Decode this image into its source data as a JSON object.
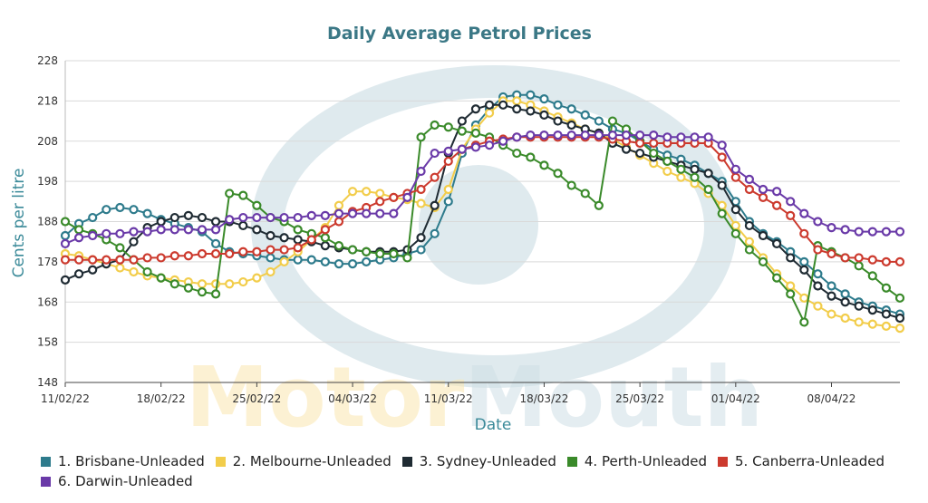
{
  "chart_data": {
    "type": "line",
    "title": "Daily Average Petrol Prices",
    "xlabel": "Date",
    "ylabel": "Cents per litre",
    "ylim": [
      148,
      228
    ],
    "yticks": [
      148,
      158,
      168,
      178,
      188,
      198,
      208,
      218,
      228
    ],
    "x": [
      "11/02/22",
      "12/02/22",
      "13/02/22",
      "14/02/22",
      "15/02/22",
      "16/02/22",
      "17/02/22",
      "18/02/22",
      "19/02/22",
      "20/02/22",
      "21/02/22",
      "22/02/22",
      "23/02/22",
      "24/02/22",
      "25/02/22",
      "26/02/22",
      "27/02/22",
      "28/02/22",
      "01/03/22",
      "02/03/22",
      "03/03/22",
      "04/03/22",
      "05/03/22",
      "06/03/22",
      "07/03/22",
      "08/03/22",
      "09/03/22",
      "10/03/22",
      "11/03/22",
      "12/03/22",
      "13/03/22",
      "14/03/22",
      "15/03/22",
      "16/03/22",
      "17/03/22",
      "18/03/22",
      "19/03/22",
      "20/03/22",
      "21/03/22",
      "22/03/22",
      "23/03/22",
      "24/03/22",
      "25/03/22",
      "26/03/22",
      "27/03/22",
      "28/03/22",
      "29/03/22",
      "30/03/22",
      "31/03/22",
      "01/04/22",
      "02/04/22",
      "03/04/22",
      "04/04/22",
      "05/04/22",
      "06/04/22",
      "07/04/22",
      "08/04/22",
      "09/04/22",
      "10/04/22",
      "11/04/22",
      "12/04/22",
      "13/04/22"
    ],
    "xticks": [
      "11/02/22",
      "18/02/22",
      "25/02/22",
      "04/03/22",
      "11/03/22",
      "18/03/22",
      "25/03/22",
      "01/04/22",
      "08/04/22"
    ],
    "series": [
      {
        "name": "1. Brisbane-Unleaded",
        "color": "#2e7b8c",
        "values": [
          184.5,
          187.5,
          189,
          191,
          191.5,
          191,
          190,
          188.5,
          187.5,
          186.5,
          185.5,
          182.5,
          180.5,
          180,
          179.5,
          179,
          178.5,
          178.5,
          178.5,
          178,
          177.5,
          177.5,
          178,
          178.5,
          179,
          180,
          181,
          185,
          193,
          205,
          212,
          216,
          219,
          219.5,
          219.5,
          218.5,
          217,
          216,
          214.5,
          213,
          211,
          210,
          208,
          206,
          204.5,
          203.5,
          202,
          200,
          198,
          193,
          188,
          185,
          183,
          180.5,
          178,
          175,
          172,
          170,
          168,
          167,
          166,
          165
        ]
      },
      {
        "name": "2. Melbourne-Unleaded",
        "color": "#f2cd4b",
        "values": [
          180,
          179.5,
          178.5,
          177.5,
          176.5,
          175.5,
          174.5,
          174,
          173.5,
          173,
          172.5,
          172.5,
          172.5,
          173,
          174,
          175.5,
          178,
          180.5,
          183.5,
          186.5,
          192,
          195.5,
          195.5,
          195,
          194,
          193.5,
          192.5,
          191.5,
          196,
          206,
          211,
          215,
          218,
          218,
          217,
          215.5,
          214,
          212.5,
          211,
          210,
          208.5,
          206.5,
          204.5,
          202.5,
          200.5,
          199,
          197.5,
          195,
          192,
          187,
          183,
          179,
          175,
          172,
          169,
          167,
          165,
          164,
          163,
          162.5,
          162,
          161.5
        ]
      },
      {
        "name": "3. Sydney-Unleaded",
        "color": "#1f2b33",
        "values": [
          173.5,
          175,
          176,
          177.5,
          178.5,
          183,
          186.5,
          188,
          189,
          189.5,
          189,
          188,
          188,
          187,
          186,
          184.5,
          184,
          183.5,
          183,
          182,
          181.5,
          181,
          180.5,
          180.5,
          180.5,
          181,
          184,
          192,
          205,
          213,
          216,
          217,
          217,
          216,
          215.5,
          214.5,
          213,
          212,
          211,
          210,
          207.5,
          206,
          205,
          204,
          203,
          202,
          201,
          200,
          197,
          191,
          187,
          184.5,
          182.5,
          179,
          176,
          172,
          169.5,
          168,
          167,
          166,
          165,
          164
        ]
      },
      {
        "name": "4. Perth-Unleaded",
        "color": "#3a8a2a",
        "values": [
          188,
          186,
          185,
          183.5,
          181.5,
          178.5,
          175.5,
          174,
          172.5,
          171.5,
          170.5,
          170,
          195,
          194.5,
          192,
          189,
          188,
          186,
          185,
          184,
          182,
          181,
          180.5,
          180,
          180,
          179,
          209,
          212,
          211.5,
          210.5,
          210,
          209,
          207,
          205,
          204,
          202,
          200,
          197,
          195,
          192,
          213,
          211,
          208,
          205,
          203,
          201,
          199,
          196,
          190,
          185,
          181,
          178,
          174,
          170,
          163,
          182,
          180.5,
          179,
          177,
          174.5,
          171.5,
          169
        ]
      },
      {
        "name": "5. Canberra-Unleaded",
        "color": "#cc3a2e",
        "values": [
          178.5,
          178.5,
          178.5,
          178.5,
          178.5,
          178.5,
          179,
          179,
          179.5,
          179.5,
          180,
          180,
          180,
          180.5,
          180.5,
          181,
          181,
          181.5,
          183.5,
          186,
          188,
          190.5,
          191.5,
          193,
          194,
          195,
          196,
          199,
          203,
          206,
          207,
          208,
          208.5,
          209,
          209,
          209,
          209,
          209,
          209,
          209,
          208.5,
          208,
          207.5,
          207.5,
          207.5,
          207.5,
          207.5,
          207.5,
          204,
          199,
          196,
          194,
          192,
          189.5,
          185,
          181,
          180,
          179,
          179,
          178.5,
          178,
          178
        ]
      },
      {
        "name": "6. Darwin-Unleaded",
        "color": "#6a3aa8",
        "values": [
          182.5,
          184,
          184.5,
          185,
          185,
          185.5,
          185.5,
          186,
          186,
          186,
          186,
          186,
          188.5,
          189,
          189,
          189,
          189,
          189,
          189.5,
          189.5,
          190,
          190,
          190,
          190,
          190,
          194,
          200.5,
          205,
          205.5,
          206,
          206.5,
          207,
          208,
          209,
          209.5,
          209.5,
          209.5,
          209.5,
          209.5,
          209.5,
          209.5,
          209.5,
          209.5,
          209.5,
          209,
          209,
          209,
          209,
          207,
          201,
          198.5,
          196,
          195.5,
          193,
          190,
          188,
          186.5,
          186,
          185.5,
          185.5,
          185.5,
          185.5
        ]
      }
    ],
    "watermark": "MotorMouth",
    "grid": true,
    "legend_position": "bottom"
  }
}
